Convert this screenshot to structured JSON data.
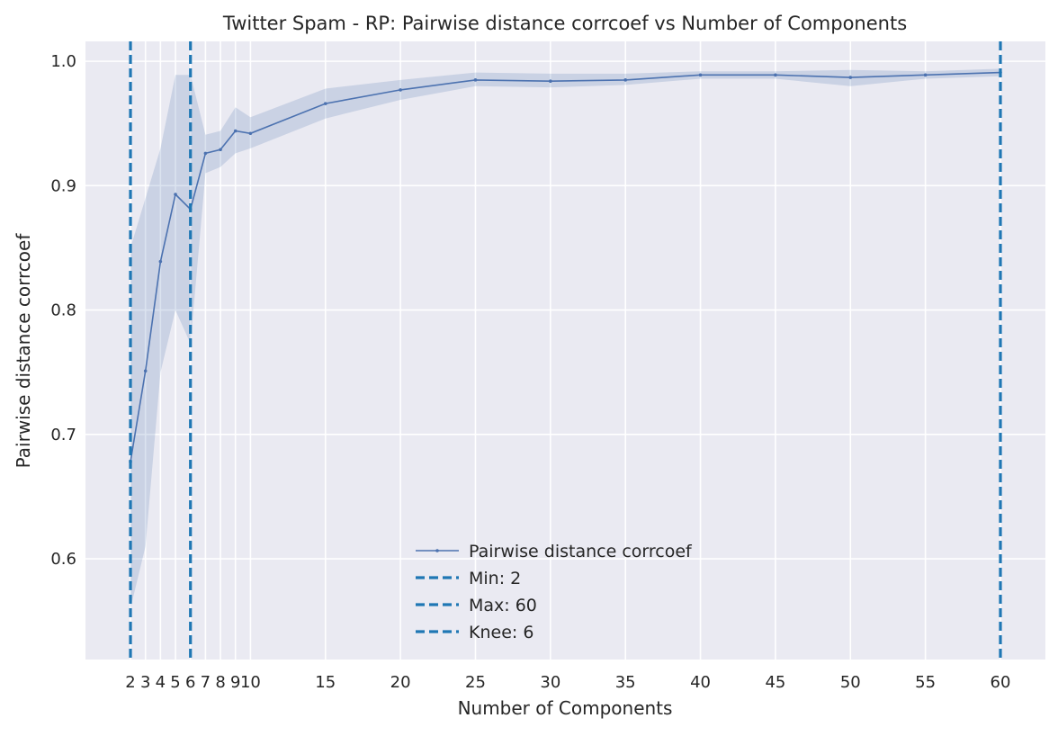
{
  "chart_data": {
    "type": "line",
    "title": "Twitter Spam - RP: Pairwise distance corrcoef vs Number of Components",
    "xlabel": "Number of Components",
    "ylabel": "Pairwise distance corrcoef",
    "xlim": [
      -1,
      63
    ],
    "ylim": [
      0.519,
      1.016
    ],
    "xticks": [
      2,
      3,
      4,
      5,
      6,
      7,
      8,
      9,
      10,
      15,
      20,
      25,
      30,
      35,
      40,
      45,
      50,
      55,
      60
    ],
    "yticks": [
      0.6,
      0.7,
      0.8,
      0.9,
      1.0
    ],
    "ytick_labels": [
      "0.6",
      "0.7",
      "0.8",
      "0.9",
      "1.0"
    ],
    "grid": true,
    "legend_position": "lower center",
    "series": [
      {
        "name": "Pairwise distance corrcoef",
        "color": "#4c72b0",
        "band_color": "#4c72b0",
        "x": [
          2,
          3,
          4,
          5,
          6,
          7,
          8,
          9,
          10,
          15,
          20,
          25,
          30,
          35,
          40,
          45,
          50,
          55,
          60
        ],
        "y": [
          0.678,
          0.751,
          0.839,
          0.893,
          0.881,
          0.926,
          0.929,
          0.944,
          0.942,
          0.966,
          0.977,
          0.985,
          0.984,
          0.985,
          0.989,
          0.989,
          0.987,
          0.989,
          0.991
        ],
        "y_upper": [
          0.85,
          0.89,
          0.93,
          0.989,
          0.989,
          0.941,
          0.944,
          0.963,
          0.955,
          0.978,
          0.985,
          0.991,
          0.99,
          0.99,
          0.992,
          0.992,
          0.993,
          0.992,
          0.994
        ],
        "y_lower": [
          0.56,
          0.61,
          0.75,
          0.8,
          0.773,
          0.91,
          0.915,
          0.926,
          0.93,
          0.954,
          0.969,
          0.98,
          0.979,
          0.981,
          0.986,
          0.986,
          0.98,
          0.986,
          0.988
        ]
      }
    ],
    "vlines": [
      {
        "label": "Min: 2",
        "x": 2,
        "color": "#1f77b4"
      },
      {
        "label": "Max: 60",
        "x": 60,
        "color": "#1f77b4"
      },
      {
        "label": "Knee: 6",
        "x": 6,
        "color": "#1f77b4"
      }
    ],
    "colors": {
      "plot_background": "#eaeaf2",
      "grid": "#ffffff",
      "text": "#262626"
    }
  }
}
